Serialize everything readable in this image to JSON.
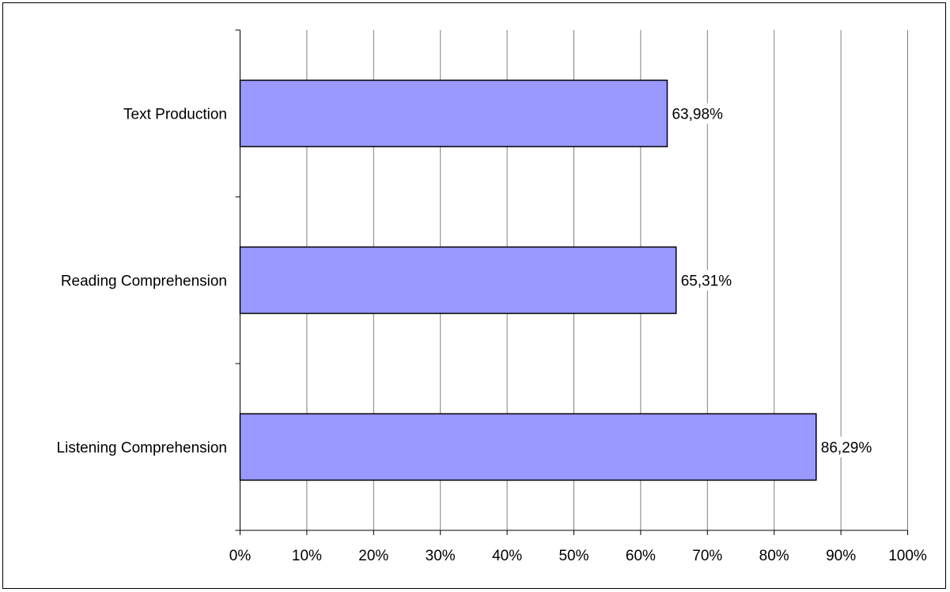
{
  "chart_data": {
    "type": "bar",
    "orientation": "horizontal",
    "categories": [
      "Text Production",
      "Reading Comprehension",
      "Listening Comprehension"
    ],
    "values": [
      63.98,
      65.31,
      86.29
    ],
    "value_labels": [
      "63,98%",
      "65,31%",
      "86,29%"
    ],
    "xlim": [
      0,
      100
    ],
    "x_ticks": [
      0,
      10,
      20,
      30,
      40,
      50,
      60,
      70,
      80,
      90,
      100
    ],
    "x_tick_labels": [
      "0%",
      "10%",
      "20%",
      "30%",
      "40%",
      "50%",
      "60%",
      "70%",
      "80%",
      "90%",
      "100%"
    ],
    "title": "",
    "xlabel": "",
    "ylabel": "",
    "grid": "vertical",
    "legend": "none",
    "bar_color": "#9999ff",
    "bar_edge_color": "#000000"
  }
}
